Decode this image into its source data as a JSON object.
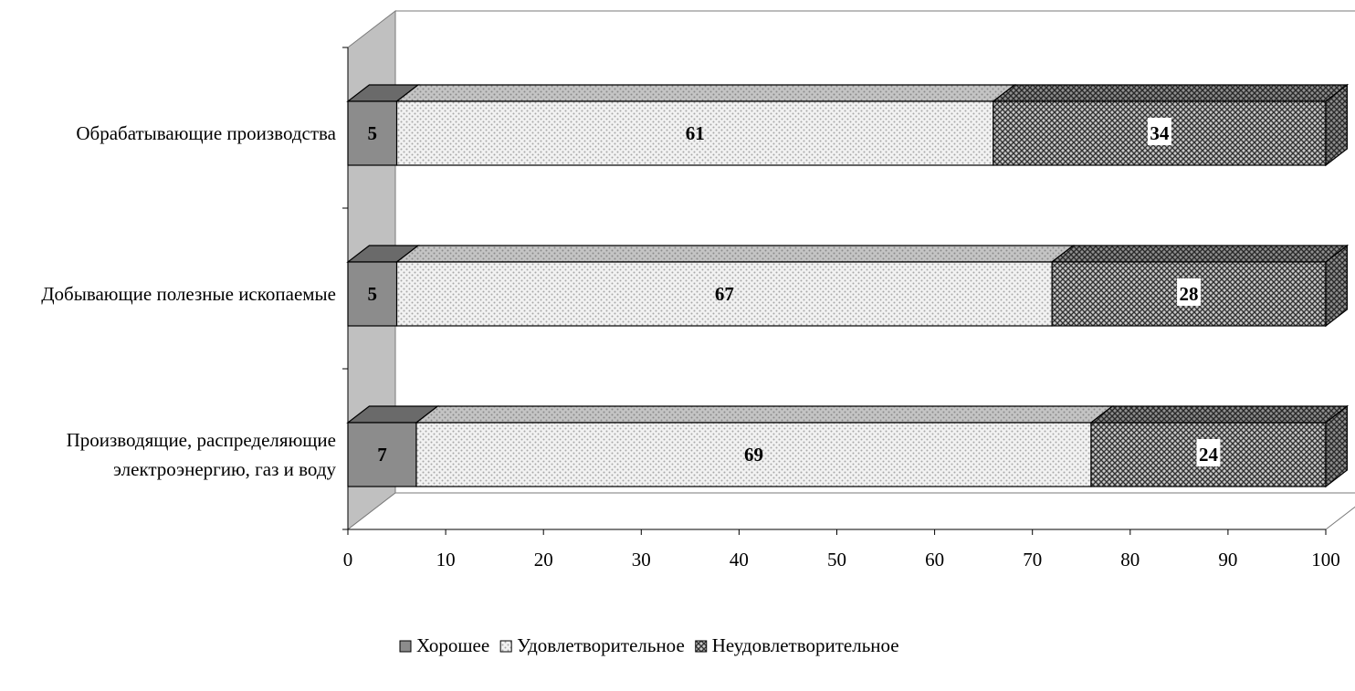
{
  "chart_data": {
    "type": "bar",
    "orientation": "horizontal",
    "stacked": "100%",
    "three_d": true,
    "categories": [
      [
        "Обрабатывающие производства"
      ],
      [
        "Добывающие полезные ископаемые"
      ],
      [
        "Производящие, распределяющие",
        "электроэнергию, газ и воду"
      ]
    ],
    "series": [
      {
        "name": "Хорошее",
        "values": [
          5,
          5,
          7
        ],
        "color": "#8c8c8c",
        "pattern": "solid"
      },
      {
        "name": "Удовлетворительное",
        "values": [
          61,
          67,
          69
        ],
        "color": "#e6e6e6",
        "pattern": "dots"
      },
      {
        "name": "Неудовлетворительное",
        "values": [
          34,
          28,
          24
        ],
        "color": "#6e6e6e",
        "pattern": "checker"
      }
    ],
    "xlim": [
      0,
      100
    ],
    "xticks": [
      "0",
      "10",
      "20",
      "30",
      "40",
      "50",
      "60",
      "70",
      "80",
      "90",
      "100"
    ],
    "title": "",
    "xlabel": "",
    "ylabel": "",
    "grid": false,
    "legend_position": "bottom"
  }
}
